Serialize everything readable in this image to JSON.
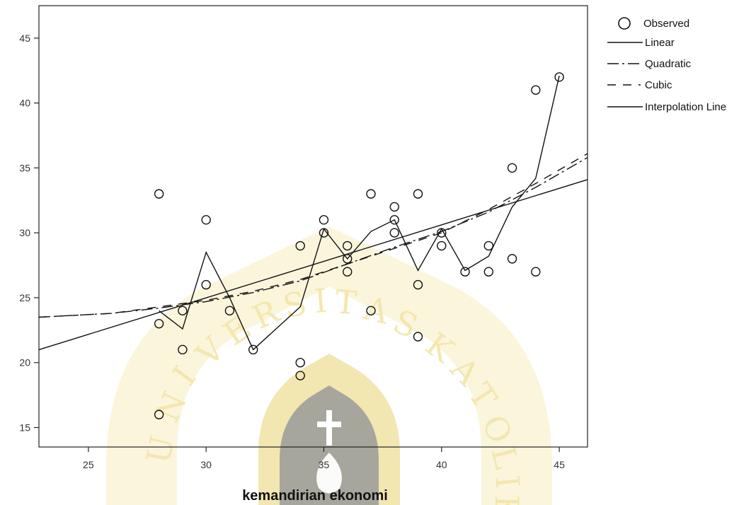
{
  "chart_data": {
    "type": "scatter",
    "title": "",
    "xlabel": "kemandirian ekonomi",
    "ylabel": "",
    "xlim": [
      22.9,
      46.2
    ],
    "ylim": [
      13.5,
      47.5
    ],
    "xticks": [
      25,
      30,
      35,
      40,
      45
    ],
    "yticks": [
      15,
      20,
      25,
      30,
      35,
      40,
      45
    ],
    "grid": false,
    "legend_position": "top-right outside",
    "series": [
      {
        "name": "Observed",
        "kind": "points",
        "points": [
          [
            28,
            33
          ],
          [
            28,
            23
          ],
          [
            28,
            16
          ],
          [
            29,
            24
          ],
          [
            29,
            21
          ],
          [
            30,
            31
          ],
          [
            30,
            26
          ],
          [
            31,
            24
          ],
          [
            32,
            21
          ],
          [
            34,
            29
          ],
          [
            34,
            20
          ],
          [
            34,
            19
          ],
          [
            35,
            31
          ],
          [
            35,
            30
          ],
          [
            36,
            29
          ],
          [
            36,
            28
          ],
          [
            36,
            27
          ],
          [
            37,
            33
          ],
          [
            37,
            24
          ],
          [
            38,
            32
          ],
          [
            38,
            31
          ],
          [
            38,
            30
          ],
          [
            39,
            33
          ],
          [
            39,
            26
          ],
          [
            39,
            22
          ],
          [
            40,
            30
          ],
          [
            40,
            29
          ],
          [
            41,
            27
          ],
          [
            42,
            29
          ],
          [
            42,
            27
          ],
          [
            43,
            35
          ],
          [
            43,
            28
          ],
          [
            44,
            41
          ],
          [
            44,
            27
          ],
          [
            45,
            42
          ]
        ]
      },
      {
        "name": "Linear",
        "kind": "line",
        "dash": "solid",
        "points": [
          [
            22.9,
            21
          ],
          [
            46.2,
            34.1
          ]
        ]
      },
      {
        "name": "Quadratic",
        "kind": "line",
        "dash": "dashdot",
        "points": [
          [
            22.9,
            23.5
          ],
          [
            26,
            23.8
          ],
          [
            28,
            24.2
          ],
          [
            30,
            24.7
          ],
          [
            32,
            25.4
          ],
          [
            34,
            26.3
          ],
          [
            36,
            27.6
          ],
          [
            38,
            28.9
          ],
          [
            40,
            30.1
          ],
          [
            42,
            31.6
          ],
          [
            44,
            33.5
          ],
          [
            46.2,
            35.8
          ]
        ]
      },
      {
        "name": "Cubic",
        "kind": "line",
        "dash": "dashed",
        "points": [
          [
            22.9,
            23.5
          ],
          [
            26,
            23.8
          ],
          [
            28,
            24.3
          ],
          [
            30,
            24.8
          ],
          [
            32,
            25.5
          ],
          [
            34,
            26.4
          ],
          [
            36,
            27.6
          ],
          [
            38,
            28.8
          ],
          [
            40,
            30.0
          ],
          [
            42,
            31.8
          ],
          [
            44,
            33.8
          ],
          [
            46.2,
            36.1
          ]
        ]
      },
      {
        "name": "Interpolation Line",
        "kind": "line",
        "dash": "solid",
        "points": [
          [
            28,
            24
          ],
          [
            29,
            22.6
          ],
          [
            30,
            28.5
          ],
          [
            31,
            25
          ],
          [
            32,
            21
          ],
          [
            34,
            24.3
          ],
          [
            35,
            30.3
          ],
          [
            36,
            28
          ],
          [
            37,
            30.1
          ],
          [
            38,
            31
          ],
          [
            39,
            27.1
          ],
          [
            40,
            30.3
          ],
          [
            41,
            27.1
          ],
          [
            42,
            28.2
          ],
          [
            43,
            32
          ],
          [
            44,
            34.2
          ],
          [
            45,
            42.1
          ]
        ]
      }
    ]
  },
  "watermark": {
    "text": "UNIVERSITAS KATOLIK",
    "color": "#f3e4a4"
  }
}
